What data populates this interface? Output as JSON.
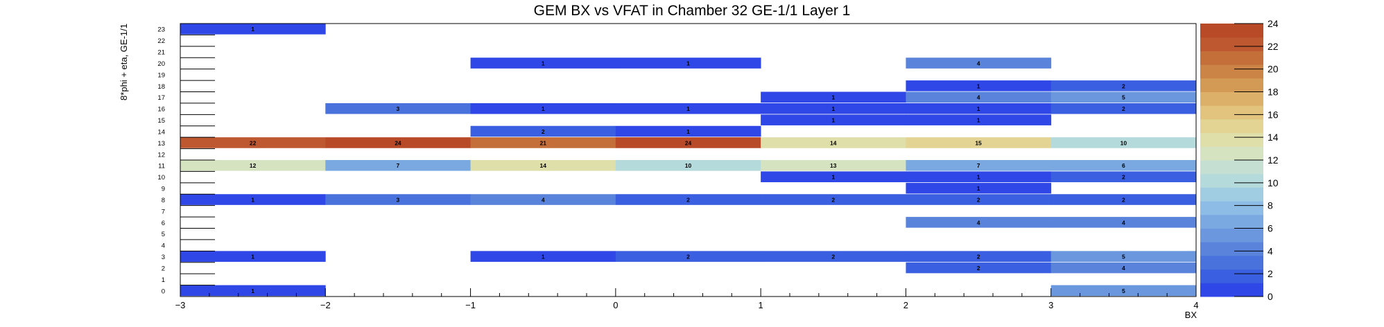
{
  "chart_data": {
    "type": "heatmap",
    "title": "GEM BX vs VFAT in Chamber 32 GE-1/1 Layer 1",
    "xlabel": "BX",
    "ylabel": "8*phi + eta, GE-1/1",
    "xlim": [
      -3,
      4
    ],
    "ylim": [
      0,
      24
    ],
    "x_bins": [
      [
        -3,
        -2
      ],
      [
        -2,
        -1
      ],
      [
        -1,
        0
      ],
      [
        0,
        1
      ],
      [
        1,
        2
      ],
      [
        2,
        3
      ],
      [
        3,
        4
      ]
    ],
    "x_ticks": [
      "−3",
      "−2",
      "−1",
      "0",
      "1",
      "2",
      "3",
      "4"
    ],
    "y_ticks": [
      "0",
      "1",
      "2",
      "3",
      "4",
      "5",
      "6",
      "7",
      "8",
      "9",
      "10",
      "11",
      "12",
      "13",
      "14",
      "15",
      "16",
      "17",
      "18",
      "19",
      "20",
      "21",
      "22",
      "23"
    ],
    "z_range": [
      0,
      24
    ],
    "z_ticks": [
      "0",
      "2",
      "4",
      "6",
      "8",
      "10",
      "12",
      "14",
      "16",
      "18",
      "20",
      "22",
      "24"
    ],
    "cells": [
      {
        "x": -2.5,
        "y": 23,
        "value": 1
      },
      {
        "x": -0.5,
        "y": 20,
        "value": 1
      },
      {
        "x": 0.5,
        "y": 20,
        "value": 1
      },
      {
        "x": 2.5,
        "y": 20,
        "value": 4
      },
      {
        "x": 2.5,
        "y": 18,
        "value": 1
      },
      {
        "x": 3.5,
        "y": 18,
        "value": 2
      },
      {
        "x": 1.5,
        "y": 17,
        "value": 1
      },
      {
        "x": 2.5,
        "y": 17,
        "value": 4
      },
      {
        "x": 3.5,
        "y": 17,
        "value": 5
      },
      {
        "x": -1.5,
        "y": 16,
        "value": 3
      },
      {
        "x": -0.5,
        "y": 16,
        "value": 1
      },
      {
        "x": 0.5,
        "y": 16,
        "value": 1
      },
      {
        "x": 1.5,
        "y": 16,
        "value": 1
      },
      {
        "x": 2.5,
        "y": 16,
        "value": 1
      },
      {
        "x": 3.5,
        "y": 16,
        "value": 2
      },
      {
        "x": 1.5,
        "y": 15,
        "value": 1
      },
      {
        "x": 2.5,
        "y": 15,
        "value": 1
      },
      {
        "x": -0.5,
        "y": 14,
        "value": 2
      },
      {
        "x": 0.5,
        "y": 14,
        "value": 1
      },
      {
        "x": -2.5,
        "y": 13,
        "value": 22
      },
      {
        "x": -1.5,
        "y": 13,
        "value": 24
      },
      {
        "x": -0.5,
        "y": 13,
        "value": 21
      },
      {
        "x": 0.5,
        "y": 13,
        "value": 24
      },
      {
        "x": 1.5,
        "y": 13,
        "value": 14
      },
      {
        "x": 2.5,
        "y": 13,
        "value": 15
      },
      {
        "x": 3.5,
        "y": 13,
        "value": 10
      },
      {
        "x": -2.5,
        "y": 11,
        "value": 12
      },
      {
        "x": -1.5,
        "y": 11,
        "value": 7
      },
      {
        "x": -0.5,
        "y": 11,
        "value": 14
      },
      {
        "x": 0.5,
        "y": 11,
        "value": 10
      },
      {
        "x": 1.5,
        "y": 11,
        "value": 13
      },
      {
        "x": 2.5,
        "y": 11,
        "value": 7
      },
      {
        "x": 3.5,
        "y": 11,
        "value": 6
      },
      {
        "x": 1.5,
        "y": 10,
        "value": 1
      },
      {
        "x": 2.5,
        "y": 10,
        "value": 1
      },
      {
        "x": 3.5,
        "y": 10,
        "value": 2
      },
      {
        "x": 2.5,
        "y": 9,
        "value": 1
      },
      {
        "x": -2.5,
        "y": 8,
        "value": 1
      },
      {
        "x": -1.5,
        "y": 8,
        "value": 3
      },
      {
        "x": -0.5,
        "y": 8,
        "value": 4
      },
      {
        "x": 0.5,
        "y": 8,
        "value": 2
      },
      {
        "x": 1.5,
        "y": 8,
        "value": 2
      },
      {
        "x": 2.5,
        "y": 8,
        "value": 2
      },
      {
        "x": 3.5,
        "y": 8,
        "value": 2
      },
      {
        "x": 2.5,
        "y": 6,
        "value": 4
      },
      {
        "x": 3.5,
        "y": 6,
        "value": 4
      },
      {
        "x": -2.5,
        "y": 3,
        "value": 1
      },
      {
        "x": -0.5,
        "y": 3,
        "value": 1
      },
      {
        "x": 0.5,
        "y": 3,
        "value": 2
      },
      {
        "x": 1.5,
        "y": 3,
        "value": 2
      },
      {
        "x": 2.5,
        "y": 3,
        "value": 2
      },
      {
        "x": 3.5,
        "y": 3,
        "value": 5
      },
      {
        "x": 2.5,
        "y": 2,
        "value": 2
      },
      {
        "x": 3.5,
        "y": 2,
        "value": 4
      },
      {
        "x": -2.5,
        "y": 0,
        "value": 1
      },
      {
        "x": 3.5,
        "y": 0,
        "value": 5
      }
    ],
    "colors": {
      "palette": [
        "#2e47e6",
        "#3a5fe0",
        "#4a72dc",
        "#5a84dc",
        "#6a97de",
        "#7aa9e2",
        "#8dbce6",
        "#a0cde2",
        "#b4dadb",
        "#c5e0d2",
        "#d6e3c0",
        "#dfdfaa",
        "#e3d494",
        "#e2c47e",
        "#dcb068",
        "#d39a56",
        "#cb8446",
        "#c46e3a",
        "#bd5830",
        "#b84a28"
      ],
      "grid": "#000000"
    },
    "grid": false,
    "legend": "colorbar-right"
  }
}
